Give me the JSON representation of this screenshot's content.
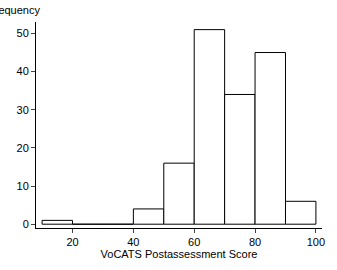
{
  "chart_data": {
    "type": "histogram",
    "xlabel": "VoCATS Postassessment Score",
    "ylabel": "Frequency",
    "bins": [
      10,
      20,
      30,
      40,
      50,
      60,
      70,
      80,
      90,
      100
    ],
    "values": [
      1,
      0,
      0,
      4,
      16,
      51,
      34,
      45,
      6
    ],
    "color": "#ffffff",
    "xlim": [
      8,
      102
    ],
    "xticks": [
      20,
      40,
      60,
      80,
      100
    ],
    "ylim": [
      -1,
      53
    ],
    "yticks": [
      0,
      10,
      20,
      30,
      40,
      50
    ],
    "grid": false
  }
}
